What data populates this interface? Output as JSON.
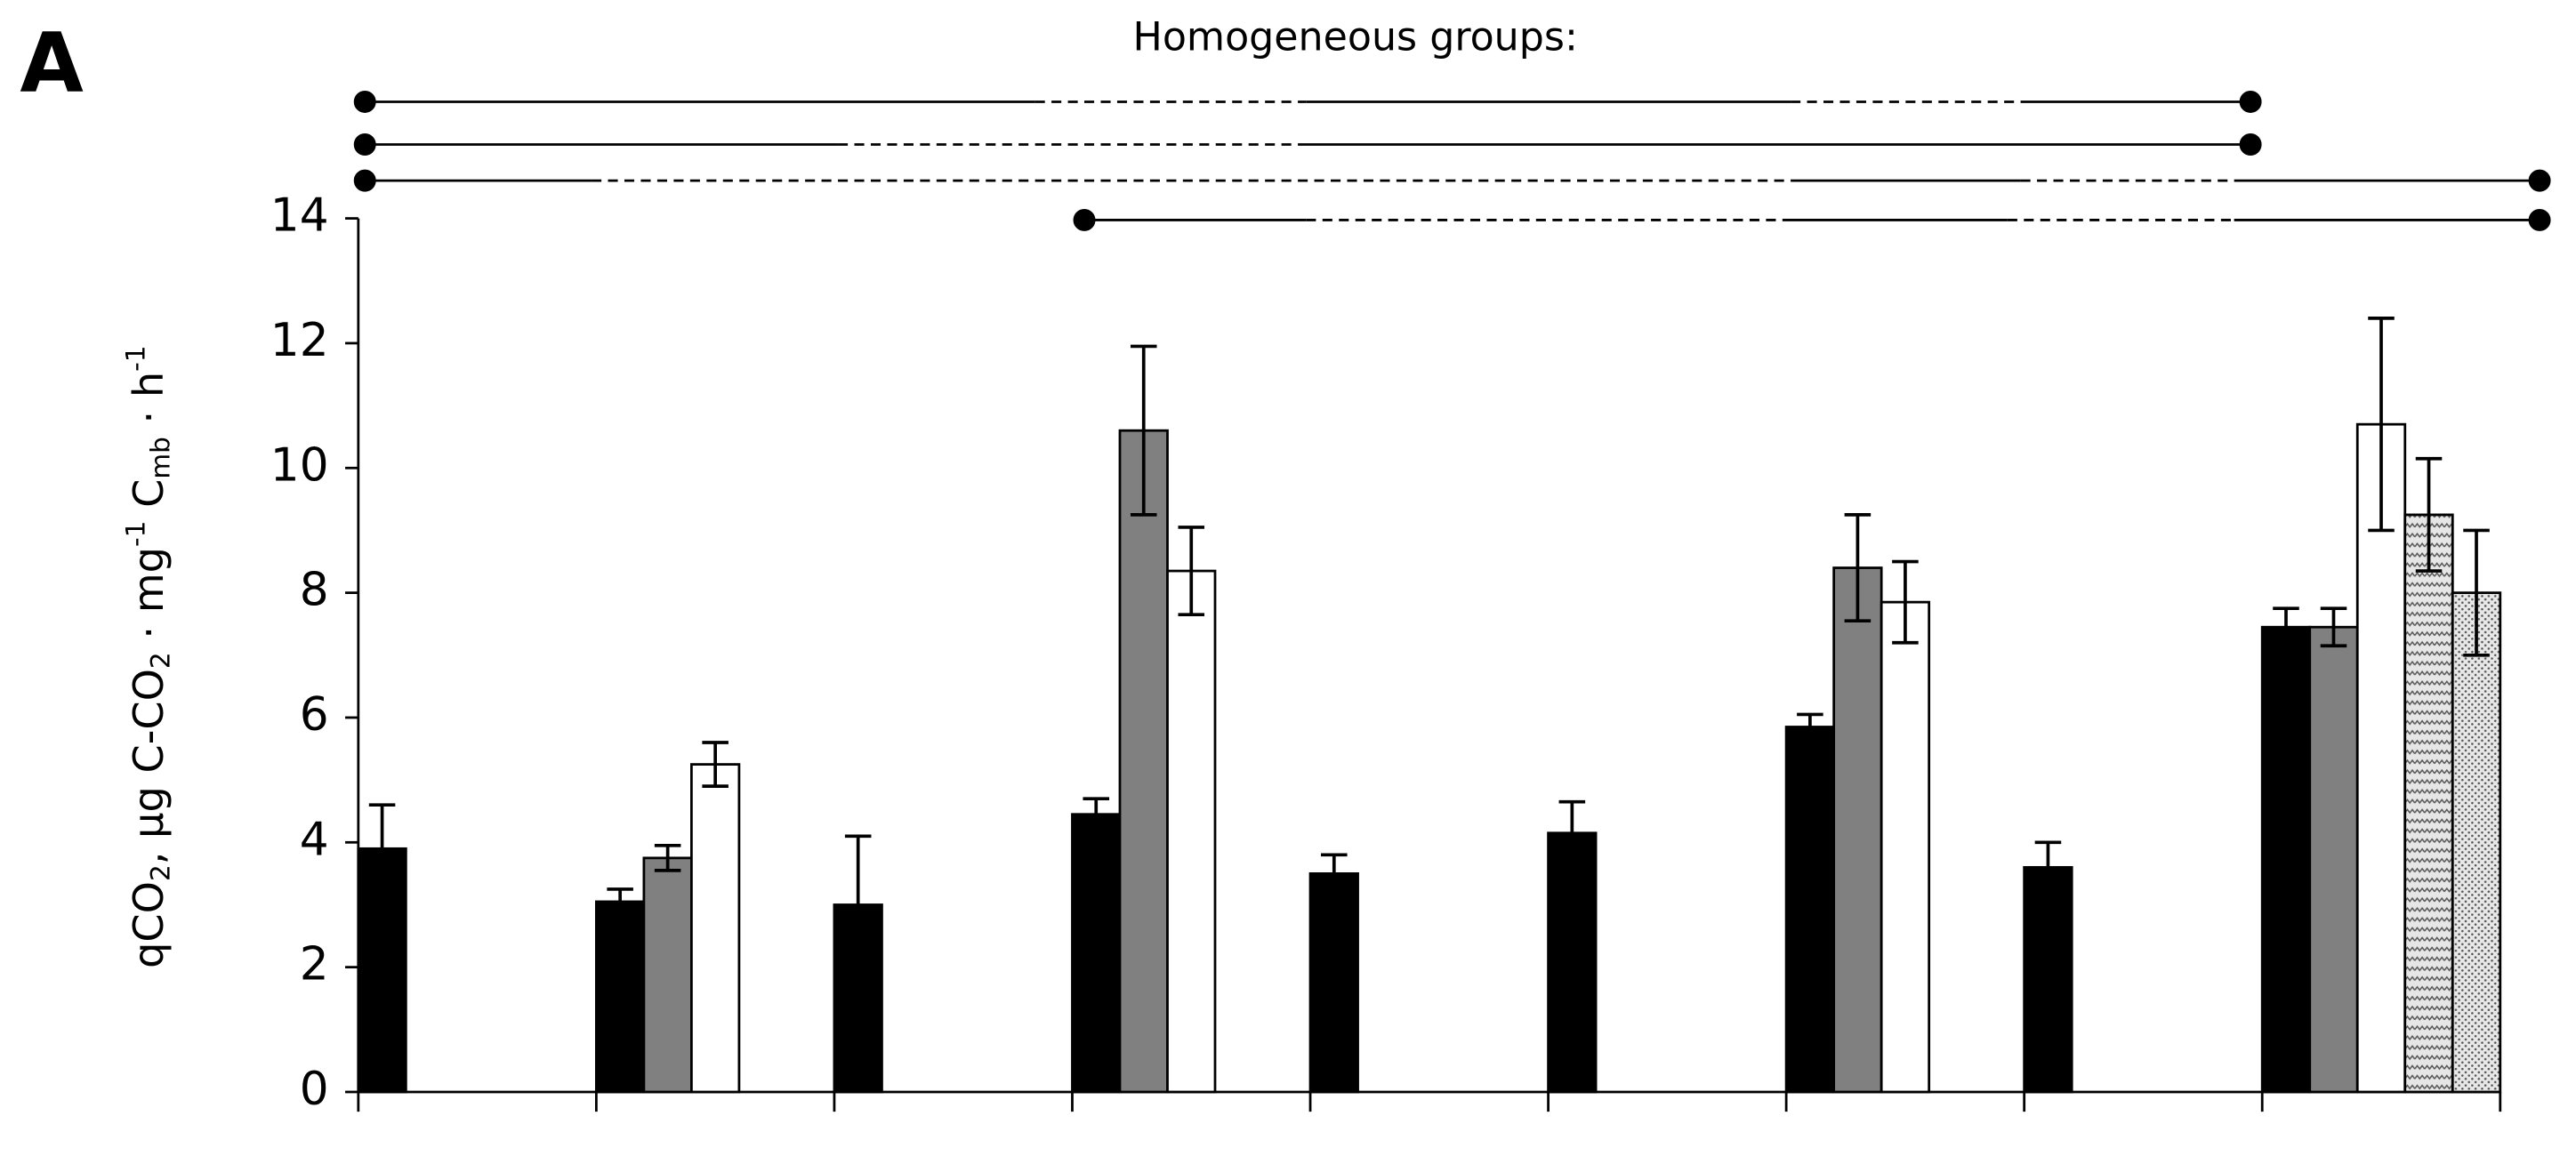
{
  "chart_data": {
    "type": "bar",
    "panel_label": "A",
    "title": "Homogeneous groups:",
    "y_label": [
      "qCO",
      "2",
      ", µg C-CO",
      "2",
      " · mg",
      "-1",
      " C",
      "mb",
      " · h",
      "-1"
    ],
    "categories": [
      null,
      null,
      null,
      null,
      null,
      null,
      null,
      null,
      null
    ],
    "series": [
      {
        "color": "#000000",
        "values": [
          3.9,
          3.05,
          3.0,
          4.45,
          3.5,
          4.15,
          5.85,
          3.6,
          7.45
        ],
        "errors": [
          0.7,
          0.2,
          1.1,
          0.25,
          0.3,
          0.5,
          0.2,
          0.4,
          0.3
        ]
      },
      {
        "color": "#808080",
        "values": [
          null,
          3.75,
          null,
          10.6,
          null,
          null,
          8.4,
          null,
          7.45
        ],
        "errors": [
          null,
          0.2,
          null,
          1.35,
          null,
          null,
          0.85,
          null,
          0.3
        ]
      },
      {
        "color": "#ffffff",
        "values": [
          null,
          5.25,
          null,
          8.35,
          null,
          null,
          7.85,
          null,
          10.7
        ],
        "errors": [
          null,
          0.35,
          null,
          0.7,
          null,
          null,
          0.65,
          null,
          1.7
        ]
      },
      {
        "color": "#d8d8d8",
        "pattern": "zigzag",
        "values": [
          null,
          null,
          null,
          null,
          null,
          null,
          null,
          null,
          9.25
        ],
        "errors": [
          null,
          null,
          null,
          null,
          null,
          null,
          null,
          null,
          0.9
        ]
      },
      {
        "color": "#d8d8d8",
        "pattern": "dots",
        "values": [
          null,
          null,
          null,
          null,
          null,
          null,
          null,
          null,
          8.0
        ],
        "errors": [
          null,
          null,
          null,
          null,
          null,
          null,
          null,
          null,
          1.0
        ]
      }
    ],
    "ylim": [
      0,
      14
    ],
    "yticks": [
      0,
      2,
      4,
      6,
      8,
      10,
      12,
      14
    ],
    "grid": false
  }
}
